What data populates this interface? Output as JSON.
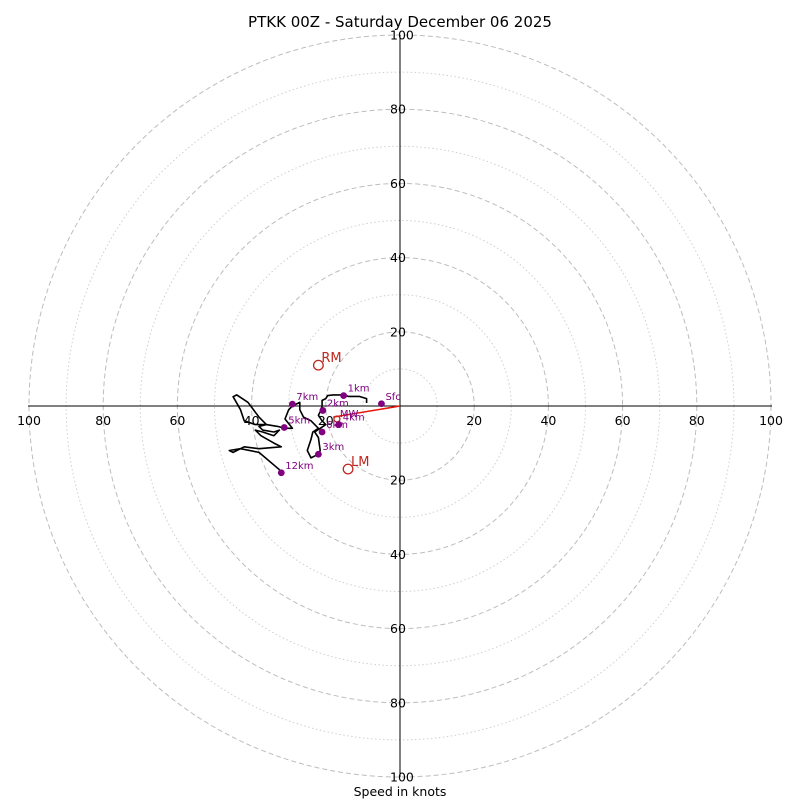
{
  "chart_data": {
    "type": "scatter",
    "subtype": "hodograph",
    "title": "PTKK 00Z - Saturday December 06 2025",
    "xlabel": "Speed in knots",
    "rmax": 100,
    "major_rings": [
      20,
      40,
      60,
      80,
      100
    ],
    "minor_rings": [
      10,
      30,
      50,
      70,
      90
    ],
    "x_ticks": [
      {
        "value": -100,
        "label": "100"
      },
      {
        "value": -80,
        "label": "80"
      },
      {
        "value": -60,
        "label": "60"
      },
      {
        "value": -40,
        "label": "40"
      },
      {
        "value": -20,
        "label": "20"
      },
      {
        "value": 20,
        "label": "20"
      },
      {
        "value": 40,
        "label": "40"
      },
      {
        "value": 60,
        "label": "60"
      },
      {
        "value": 80,
        "label": "80"
      },
      {
        "value": 100,
        "label": "100"
      }
    ],
    "y_ticks": [
      {
        "value": 100,
        "label": "100"
      },
      {
        "value": 80,
        "label": "80"
      },
      {
        "value": 60,
        "label": "60"
      },
      {
        "value": 40,
        "label": "40"
      },
      {
        "value": 20,
        "label": "20"
      },
      {
        "value": -20,
        "label": "20"
      },
      {
        "value": -40,
        "label": "40"
      },
      {
        "value": -60,
        "label": "60"
      },
      {
        "value": -80,
        "label": "80"
      },
      {
        "value": -100,
        "label": "100"
      }
    ],
    "trace": [
      [
        -9,
        0.8
      ],
      [
        -9,
        2
      ],
      [
        -11,
        2.6
      ],
      [
        -14,
        2.6
      ],
      [
        -15,
        3
      ],
      [
        -18,
        3
      ],
      [
        -19.5,
        2.8
      ],
      [
        -20,
        2
      ],
      [
        -21,
        1.5
      ],
      [
        -21,
        0
      ],
      [
        -21.5,
        -1.5
      ],
      [
        -22,
        -2.5
      ],
      [
        -21,
        -4
      ],
      [
        -20,
        -5
      ],
      [
        -21.5,
        -6
      ],
      [
        -23,
        -7
      ],
      [
        -22,
        -8.5
      ],
      [
        -21.5,
        -12
      ],
      [
        -22,
        -13
      ],
      [
        -24,
        -14
      ],
      [
        -25,
        -12
      ],
      [
        -24,
        -9
      ],
      [
        -23.5,
        -7
      ],
      [
        -22,
        -6
      ],
      [
        -24,
        -4
      ],
      [
        -26,
        -3
      ],
      [
        -27,
        -1
      ],
      [
        -27,
        1
      ],
      [
        -29,
        0
      ],
      [
        -30,
        -1
      ],
      [
        -31,
        -3.5
      ],
      [
        -29,
        -6
      ],
      [
        -31,
        -6
      ],
      [
        -33,
        -5.5
      ],
      [
        -36,
        -5
      ],
      [
        -39,
        -5
      ],
      [
        -42,
        -4
      ],
      [
        -43,
        -1
      ],
      [
        -45,
        2.5
      ],
      [
        -44,
        3
      ],
      [
        -41,
        1
      ],
      [
        -38,
        -3
      ],
      [
        -36,
        -5
      ],
      [
        -38,
        -5.5
      ],
      [
        -37,
        -6.5
      ],
      [
        -34,
        -7
      ],
      [
        -32.5,
        -6.5
      ],
      [
        -34,
        -8
      ],
      [
        -37,
        -7
      ],
      [
        -39,
        -6.5
      ],
      [
        -37.5,
        -8
      ],
      [
        -34,
        -10
      ],
      [
        -32,
        -11
      ],
      [
        -38,
        -11.5
      ],
      [
        -42,
        -11
      ],
      [
        -45,
        -12.5
      ],
      [
        -46,
        -12
      ],
      [
        -43,
        -11.5
      ],
      [
        -38,
        -12.5
      ],
      [
        -31.5,
        -18
      ]
    ],
    "height_points": [
      {
        "label": "Sfc",
        "u": -5,
        "v": 0.6
      },
      {
        "label": "1km",
        "u": -15.2,
        "v": 2.8
      },
      {
        "label": "2km",
        "u": -20.8,
        "v": -1.2
      },
      {
        "label": "3km",
        "u": -22,
        "v": -13
      },
      {
        "label": "4km",
        "u": -16.5,
        "v": -5
      },
      {
        "label": "5km",
        "u": -31.2,
        "v": -5.8
      },
      {
        "label": "6km",
        "u": -21,
        "v": -7
      },
      {
        "label": "7km",
        "u": -29,
        "v": 0.5
      },
      {
        "label": "12km",
        "u": -32,
        "v": -18
      }
    ],
    "storm_motion": [
      {
        "label": "RM",
        "u": -22,
        "v": 11
      },
      {
        "label": "LM",
        "u": -14,
        "v": -17
      }
    ],
    "mean_wind": {
      "label": "MW",
      "u": -17,
      "v": -3.5
    },
    "shear_vector": {
      "from": {
        "u": 0,
        "v": 0
      },
      "to": {
        "u": -18,
        "v": -3
      }
    },
    "colors": {
      "trace": "#000000",
      "height_points": "#800080",
      "storm_motion": "#c0281f",
      "shear": "#e8140a",
      "major_ring": "#bdbdbd",
      "minor_ring": "#cfcfcf"
    }
  }
}
